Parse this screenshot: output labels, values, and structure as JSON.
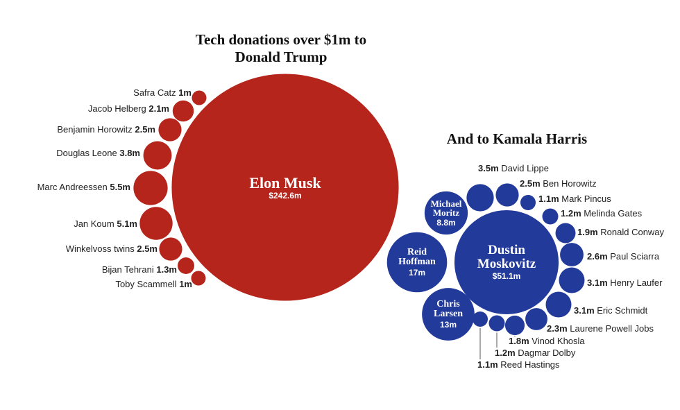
{
  "chart_data": [
    {
      "type": "bubble",
      "title": "Tech donations over $1m to Donald Trump",
      "color": "#b5251b",
      "names": [
        "Elon Musk",
        "Safra Catz",
        "Jacob Helberg",
        "Benjamin Horowitz",
        "Douglas Leone",
        "Marc Andreessen",
        "Jan Koum",
        "Winkelvoss twins",
        "Bijan Tehrani",
        "Toby Scammell"
      ],
      "values": [
        242.6,
        1,
        2.1,
        2.5,
        3.8,
        5.5,
        5.1,
        2.5,
        1.3,
        1
      ],
      "value_labels": [
        "$242.6m",
        "1m",
        "2.1m",
        "2.5m",
        "3.8m",
        "5.5m",
        "5.1m",
        "2.5m",
        "1.3m",
        "1m"
      ]
    },
    {
      "type": "bubble",
      "title": "And to Kamala Harris",
      "color": "#223a9a",
      "names": [
        "Dustin Moskovitz",
        "Reid Hoffman",
        "Chris Larsen",
        "Michael Moritz",
        "David Lippe",
        "Ben Horowitz",
        "Mark Pincus",
        "Melinda Gates",
        "Ronald Conway",
        "Paul Sciarra",
        "Henry Laufer",
        "Eric Schmidt",
        "Laurene Powell Jobs",
        "Vinod Khosla",
        "Dagmar Dolby",
        "Reed Hastings"
      ],
      "values": [
        51.1,
        17,
        13,
        8.8,
        3.5,
        2.5,
        1.1,
        1.2,
        1.9,
        2.6,
        3.1,
        3.1,
        2.3,
        1.8,
        1.2,
        1.1
      ],
      "value_labels": [
        "$51.1m",
        "17m",
        "13m",
        "8.8m",
        "3.5m",
        "2.5m",
        "1.1m",
        "1.2m",
        "1.9m",
        "2.6m",
        "3.1m",
        "3.1m",
        "2.3m",
        "1.8m",
        "1.2m",
        "1.1m"
      ]
    }
  ]
}
